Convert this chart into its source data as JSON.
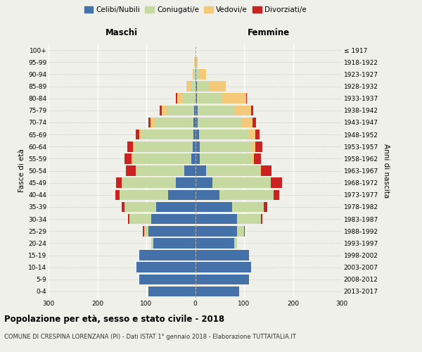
{
  "age_groups": [
    "0-4",
    "5-9",
    "10-14",
    "15-19",
    "20-24",
    "25-29",
    "30-34",
    "35-39",
    "40-44",
    "45-49",
    "50-54",
    "55-59",
    "60-64",
    "65-69",
    "70-74",
    "75-79",
    "80-84",
    "85-89",
    "90-94",
    "95-99",
    "100+"
  ],
  "birth_years": [
    "2013-2017",
    "2008-2012",
    "2003-2007",
    "1998-2002",
    "1993-1997",
    "1988-1992",
    "1983-1987",
    "1978-1982",
    "1973-1977",
    "1968-1972",
    "1963-1967",
    "1958-1962",
    "1953-1957",
    "1948-1952",
    "1943-1947",
    "1938-1942",
    "1933-1937",
    "1928-1932",
    "1923-1927",
    "1918-1922",
    "≤ 1917"
  ],
  "male": {
    "celibe": [
      95,
      115,
      120,
      115,
      85,
      95,
      90,
      80,
      55,
      40,
      22,
      8,
      5,
      4,
      3,
      2,
      0,
      0,
      0,
      0,
      0
    ],
    "coniugato": [
      0,
      0,
      0,
      0,
      5,
      10,
      45,
      65,
      100,
      110,
      100,
      120,
      120,
      105,
      80,
      55,
      25,
      10,
      3,
      1,
      0
    ],
    "vedovo": [
      0,
      0,
      0,
      0,
      0,
      0,
      0,
      0,
      0,
      0,
      0,
      2,
      2,
      5,
      8,
      12,
      12,
      8,
      2,
      1,
      0
    ],
    "divorziato": [
      0,
      0,
      0,
      0,
      0,
      2,
      2,
      5,
      8,
      12,
      20,
      15,
      12,
      8,
      5,
      3,
      2,
      0,
      0,
      0,
      0
    ]
  },
  "female": {
    "nubile": [
      90,
      110,
      115,
      110,
      80,
      85,
      85,
      75,
      50,
      35,
      22,
      10,
      10,
      8,
      5,
      5,
      4,
      3,
      2,
      0,
      0
    ],
    "coniugata": [
      0,
      0,
      0,
      0,
      5,
      15,
      50,
      65,
      110,
      120,
      110,
      105,
      105,
      100,
      90,
      75,
      50,
      25,
      8,
      2,
      0
    ],
    "vedova": [
      0,
      0,
      0,
      0,
      0,
      0,
      0,
      0,
      0,
      0,
      2,
      5,
      8,
      15,
      22,
      35,
      50,
      35,
      12,
      3,
      1
    ],
    "divorziata": [
      0,
      0,
      0,
      0,
      0,
      2,
      3,
      8,
      12,
      22,
      22,
      15,
      15,
      8,
      8,
      3,
      2,
      0,
      0,
      0,
      0
    ]
  },
  "colors": {
    "celibe": "#4472a8",
    "coniugato": "#c5d9a0",
    "vedovo": "#f5c97a",
    "divorziato": "#cc2222"
  },
  "legend_labels": [
    "Celibi/Nubili",
    "Coniugati/e",
    "Vedovi/e",
    "Divorziati/e"
  ],
  "title": "Popolazione per età, sesso e stato civile - 2018",
  "subtitle": "COMUNE DI CRESPINA LORENZANA (PI) - Dati ISTAT 1° gennaio 2018 - Elaborazione TUTTAITALIA.IT",
  "xlabel_left": "Maschi",
  "xlabel_right": "Femmine",
  "ylabel_left": "Fasce di età",
  "ylabel_right": "Anni di nascita",
  "xlim": 300,
  "bg_color": "#f0f0eb"
}
